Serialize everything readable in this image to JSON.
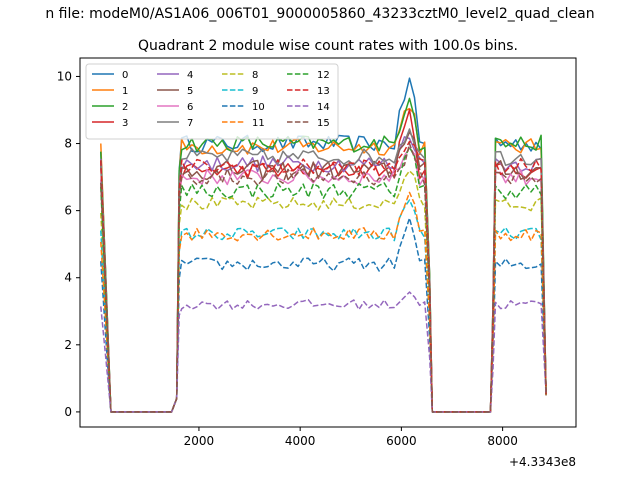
{
  "figure": {
    "suptitle": "n file: modeM0/AS1A06_006T01_9000005860_43233cztM0_level2_quad_clean",
    "offset_label": "+4.3343e8"
  },
  "chart_data": {
    "type": "line",
    "title": "Quadrant 2 module wise count rates with 100.0s bins.",
    "xlabel": "",
    "ylabel": "",
    "xlim": [
      -350,
      9450
    ],
    "ylim": [
      -0.45,
      10.55
    ],
    "x_ticks": [
      {
        "value": 2000,
        "label": "2000"
      },
      {
        "value": 4000,
        "label": "4000"
      },
      {
        "value": 6000,
        "label": "6000"
      },
      {
        "value": 8000,
        "label": "8000"
      }
    ],
    "y_ticks": [
      {
        "value": 0,
        "label": "0"
      },
      {
        "value": 2,
        "label": "2"
      },
      {
        "value": 4,
        "label": "4"
      },
      {
        "value": 6,
        "label": "6"
      },
      {
        "value": 8,
        "label": "8"
      },
      {
        "value": 10,
        "label": "10"
      }
    ],
    "grid": false,
    "legend": {
      "placement": "upper-left",
      "columns": 4
    },
    "segments": [
      {
        "start": 60,
        "end": 260,
        "step": 100
      },
      {
        "start": 260,
        "end": 1460,
        "step": 100
      },
      {
        "start": 1460,
        "end": 6560,
        "step": 100
      },
      {
        "start": 6560,
        "end": 7760,
        "step": 100
      },
      {
        "start": 7760,
        "end": 8860,
        "step": 100
      }
    ],
    "series": [
      {
        "name": "0",
        "color": "#1f77b4",
        "dash": "solid",
        "level": 8.0,
        "peak": 10.0,
        "jitter": 0.25
      },
      {
        "name": "1",
        "color": "#ff7f0e",
        "dash": "solid",
        "level": 7.9,
        "peak": 9.3,
        "jitter": 0.25
      },
      {
        "name": "2",
        "color": "#2ca02c",
        "dash": "solid",
        "level": 8.0,
        "peak": 9.5,
        "jitter": 0.25
      },
      {
        "name": "3",
        "color": "#d62728",
        "dash": "solid",
        "level": 7.2,
        "peak": 8.9,
        "jitter": 0.25
      },
      {
        "name": "4",
        "color": "#9467bd",
        "dash": "solid",
        "level": 7.4,
        "peak": 8.4,
        "jitter": 0.25
      },
      {
        "name": "5",
        "color": "#8c564b",
        "dash": "solid",
        "level": 7.2,
        "peak": 8.6,
        "jitter": 0.3
      },
      {
        "name": "6",
        "color": "#e377c2",
        "dash": "solid",
        "level": 7.0,
        "peak": 8.0,
        "jitter": 0.25
      },
      {
        "name": "7",
        "color": "#7f7f7f",
        "dash": "solid",
        "level": 7.6,
        "peak": 8.5,
        "jitter": 0.25
      },
      {
        "name": "8",
        "color": "#bcbd22",
        "dash": "dashed",
        "level": 6.2,
        "peak": 7.3,
        "jitter": 0.2
      },
      {
        "name": "9",
        "color": "#17becf",
        "dash": "dashed",
        "level": 5.3,
        "peak": 6.3,
        "jitter": 0.2
      },
      {
        "name": "10",
        "color": "#1f77b4",
        "dash": "dashed",
        "level": 4.4,
        "peak": 5.7,
        "jitter": 0.2
      },
      {
        "name": "11",
        "color": "#ff7f0e",
        "dash": "dashed",
        "level": 5.3,
        "peak": 6.6,
        "jitter": 0.2
      },
      {
        "name": "12",
        "color": "#2ca02c",
        "dash": "dashed",
        "level": 6.6,
        "peak": 8.0,
        "jitter": 0.25
      },
      {
        "name": "13",
        "color": "#d62728",
        "dash": "dashed",
        "level": 7.3,
        "peak": 8.2,
        "jitter": 0.25
      },
      {
        "name": "14",
        "color": "#9467bd",
        "dash": "dashed",
        "level": 3.2,
        "peak": 3.6,
        "jitter": 0.15
      },
      {
        "name": "15",
        "color": "#8c564b",
        "dash": "dashed",
        "level": 7.0,
        "peak": 7.8,
        "jitter": 0.25
      }
    ]
  }
}
